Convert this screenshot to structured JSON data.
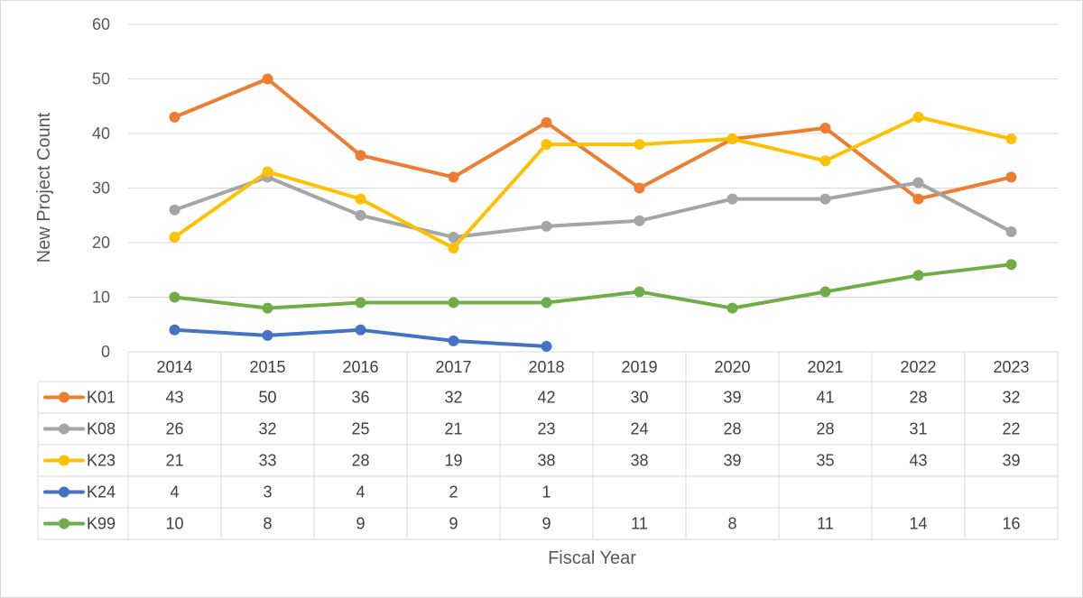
{
  "chart_data": {
    "type": "line",
    "ylabel": "New Project Count",
    "xlabel": "Fiscal Year",
    "ylim": [
      0,
      60
    ],
    "yticks": [
      0,
      10,
      20,
      30,
      40,
      50,
      60
    ],
    "grid": true,
    "legend": "data-table-below",
    "categories": [
      "2014",
      "2015",
      "2016",
      "2017",
      "2018",
      "2019",
      "2020",
      "2021",
      "2022",
      "2023"
    ],
    "series": [
      {
        "name": "K01",
        "color": "#ed7d31",
        "values": [
          43,
          50,
          36,
          32,
          42,
          30,
          39,
          41,
          28,
          32
        ]
      },
      {
        "name": "K08",
        "color": "#a5a5a5",
        "values": [
          26,
          32,
          25,
          21,
          23,
          24,
          28,
          28,
          31,
          22
        ]
      },
      {
        "name": "K23",
        "color": "#ffc000",
        "values": [
          21,
          33,
          28,
          19,
          38,
          38,
          39,
          35,
          43,
          39
        ]
      },
      {
        "name": "K24",
        "color": "#4472c4",
        "values": [
          4,
          3,
          4,
          2,
          1,
          null,
          null,
          null,
          null,
          null
        ]
      },
      {
        "name": "K99",
        "color": "#70ad47",
        "values": [
          10,
          8,
          9,
          9,
          9,
          11,
          8,
          11,
          14,
          16
        ]
      }
    ]
  }
}
